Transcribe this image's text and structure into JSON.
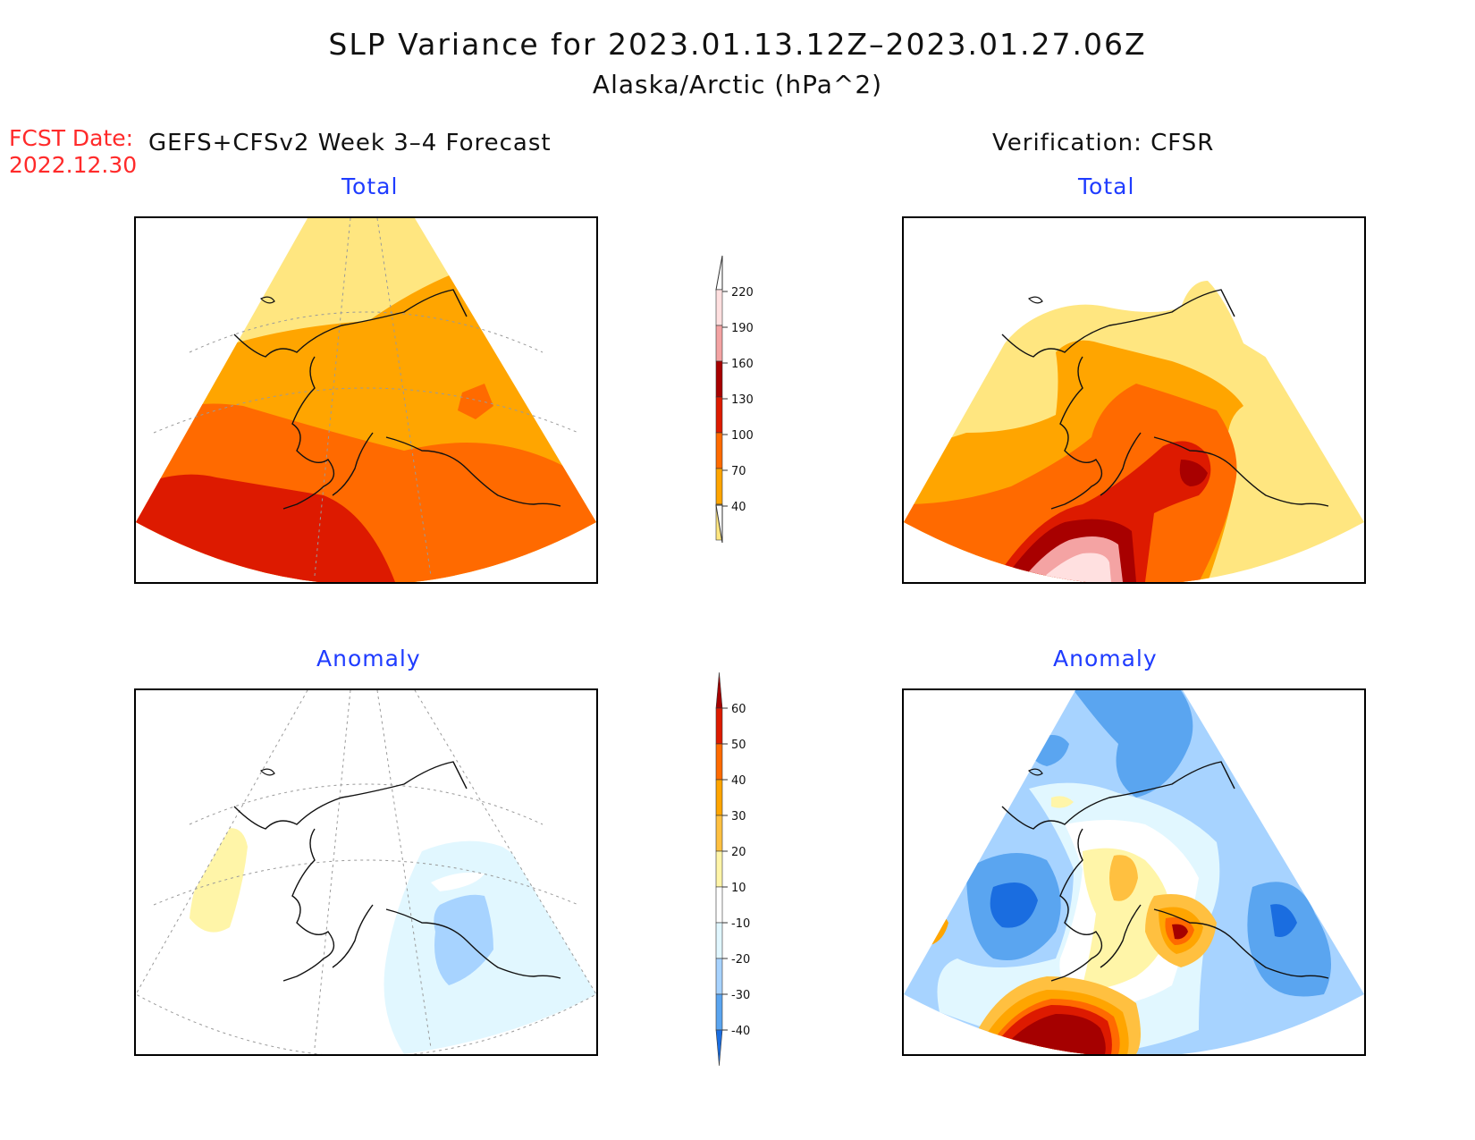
{
  "title": {
    "line1": "SLP Variance for 2023.01.13.12Z–2023.01.27.06Z",
    "line2": "Alaska/Arctic (hPa^2)"
  },
  "forecast": {
    "date_label": "FCST Date:",
    "date_value": "2022.12.30",
    "model": "GEFS+CFSv2 Week 3–4 Forecast"
  },
  "verification": {
    "label": "Verification: CFSR"
  },
  "panels": {
    "fcst_total": {
      "title": "Total"
    },
    "fcst_anomaly": {
      "title": "Anomaly"
    },
    "verif_total": {
      "title": "Total"
    },
    "verif_anomaly": {
      "title": "Anomaly"
    }
  },
  "colorbars": {
    "total": {
      "labels": [
        "220",
        "190",
        "160",
        "130",
        "100",
        "70",
        "40"
      ],
      "colors": [
        "#ffe0e0",
        "#f4a3a3",
        "#a80000",
        "#dd1a00",
        "#ff6a00",
        "#ffa500",
        "#ffe680"
      ]
    },
    "anomaly": {
      "labels": [
        "60",
        "50",
        "40",
        "30",
        "20",
        "10",
        "-10",
        "-20",
        "-30",
        "-40"
      ],
      "colors": [
        "#a50000",
        "#dd1a00",
        "#ff6a00",
        "#ffa500",
        "#ffc040",
        "#fff5a8",
        "#ffffff",
        "#e1f7ff",
        "#a7d3ff",
        "#5aa5f0",
        "#1a6de0"
      ]
    }
  },
  "palette": {
    "pale_yellow": "#ffe680",
    "orange": "#ffa500",
    "dark_orange": "#ff6a00",
    "red": "#dd1a00",
    "dark_red": "#a80000",
    "pink": "#f4a3a3",
    "light_pink": "#ffe0e0",
    "light_cyan": "#e1f7ff",
    "light_blue": "#a7d3ff",
    "mid_blue": "#5aa5f0",
    "blue": "#1a6de0",
    "anom_yellow": "#fff5a8"
  }
}
